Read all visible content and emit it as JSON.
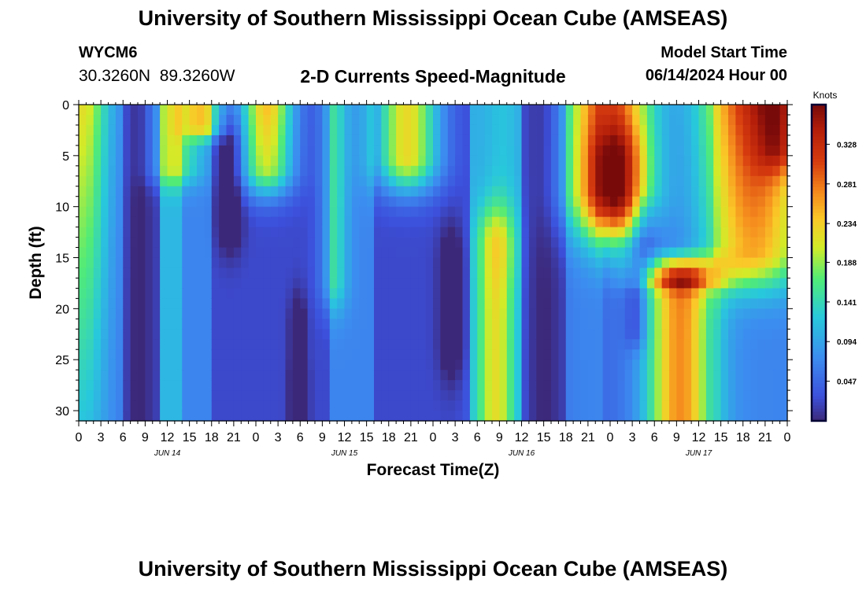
{
  "header": {
    "title": "University of Southern Mississippi Ocean Cube (AMSEAS)",
    "station_id": "WYCM6",
    "coordinates": "30.3260N  89.3260W",
    "plot_title": "2-D Currents Speed-Magnitude",
    "model_start_label": "Model Start Time",
    "model_start_value": "06/14/2024 Hour 00"
  },
  "footer": {
    "title": "University of Southern Mississippi Ocean Cube (AMSEAS)"
  },
  "colors": {
    "background": "#ffffff",
    "text": "#000000",
    "colorbar_frame": "#000033"
  },
  "chart_data": {
    "type": "heatmap",
    "title": "2-D Currents Speed-Magnitude",
    "xlabel": "Forecast Time(Z)",
    "ylabel": "Depth (ft)",
    "x_range_hours": [
      0,
      96
    ],
    "y_range_ft": [
      0,
      31
    ],
    "y_reversed": true,
    "x_ticks": [
      {
        "hour": 0,
        "label": "0"
      },
      {
        "hour": 3,
        "label": "3"
      },
      {
        "hour": 6,
        "label": "6"
      },
      {
        "hour": 9,
        "label": "9"
      },
      {
        "hour": 12,
        "label": "12"
      },
      {
        "hour": 15,
        "label": "15"
      },
      {
        "hour": 18,
        "label": "18"
      },
      {
        "hour": 21,
        "label": "21"
      },
      {
        "hour": 24,
        "label": "0"
      },
      {
        "hour": 27,
        "label": "3"
      },
      {
        "hour": 30,
        "label": "6"
      },
      {
        "hour": 33,
        "label": "9"
      },
      {
        "hour": 36,
        "label": "12"
      },
      {
        "hour": 39,
        "label": "15"
      },
      {
        "hour": 42,
        "label": "18"
      },
      {
        "hour": 45,
        "label": "21"
      },
      {
        "hour": 48,
        "label": "0"
      },
      {
        "hour": 51,
        "label": "3"
      },
      {
        "hour": 54,
        "label": "6"
      },
      {
        "hour": 57,
        "label": "9"
      },
      {
        "hour": 60,
        "label": "12"
      },
      {
        "hour": 63,
        "label": "15"
      },
      {
        "hour": 66,
        "label": "18"
      },
      {
        "hour": 69,
        "label": "21"
      },
      {
        "hour": 72,
        "label": "0"
      },
      {
        "hour": 75,
        "label": "3"
      },
      {
        "hour": 78,
        "label": "6"
      },
      {
        "hour": 81,
        "label": "9"
      },
      {
        "hour": 84,
        "label": "12"
      },
      {
        "hour": 87,
        "label": "15"
      },
      {
        "hour": 90,
        "label": "18"
      },
      {
        "hour": 93,
        "label": "21"
      },
      {
        "hour": 96,
        "label": "0"
      }
    ],
    "y_ticks": [
      {
        "depth": 0,
        "label": "0"
      },
      {
        "depth": 5,
        "label": "5"
      },
      {
        "depth": 10,
        "label": "10"
      },
      {
        "depth": 15,
        "label": "15"
      },
      {
        "depth": 20,
        "label": "20"
      },
      {
        "depth": 25,
        "label": "25"
      },
      {
        "depth": 30,
        "label": "30"
      }
    ],
    "date_labels": [
      {
        "hour": 12,
        "label": "JUN 14"
      },
      {
        "hour": 36,
        "label": "JUN 15"
      },
      {
        "hour": 60,
        "label": "JUN 16"
      },
      {
        "hour": 84,
        "label": "JUN 17"
      }
    ],
    "colorbar": {
      "label": "Knots",
      "min": 0.0,
      "max": 0.375,
      "ticks": [
        {
          "value": 0.047,
          "label": "0.047"
        },
        {
          "value": 0.094,
          "label": "0.094"
        },
        {
          "value": 0.141,
          "label": "0.141"
        },
        {
          "value": 0.188,
          "label": "0.188"
        },
        {
          "value": 0.234,
          "label": "0.234"
        },
        {
          "value": 0.281,
          "label": "0.281"
        },
        {
          "value": 0.328,
          "label": "0.328"
        }
      ]
    },
    "grid_step_hours": 1,
    "grid_step_ft": 1,
    "speed_anomalies": [
      {
        "t": 0.5,
        "ts": 2.5,
        "d0": 0,
        "d1": 31,
        "dw": 1.2,
        "depthSlope": -0.02,
        "amp": 0.16
      },
      {
        "t": 8.2,
        "ts": 1.1,
        "d0": 0,
        "d1": 31,
        "dw": 1.2,
        "depthSlope": 0,
        "amp": -0.025
      },
      {
        "t": 13,
        "ts": 2.5,
        "d0": 0,
        "d1": 6,
        "dw": 1.5,
        "depthSlope": 0,
        "amp": 0.1
      },
      {
        "t": 17,
        "ts": 2,
        "d0": 0,
        "d1": 2,
        "dw": 1.0,
        "depthSlope": 0,
        "amp": 0.14
      },
      {
        "t": 20.5,
        "ts": 1.2,
        "d0": 4,
        "d1": 11,
        "dw": 2.5,
        "depthSlope": 0,
        "amp": -0.06
      },
      {
        "t": 25.5,
        "ts": 2.5,
        "d0": 0,
        "d1": 6,
        "dw": 2.2,
        "depthSlope": -0.03,
        "amp": 0.22
      },
      {
        "t": 30,
        "ts": 0.5,
        "d0": 26.5,
        "d1": 31,
        "dw": 0.8,
        "depthSlope": 0,
        "amp": -0.35
      },
      {
        "t": 29.7,
        "ts": 0.8,
        "d0": 22,
        "d1": 31,
        "dw": 2.5,
        "depthSlope": 0,
        "amp": -0.05
      },
      {
        "t": 34.5,
        "ts": 1.3,
        "d0": 0,
        "d1": 17,
        "dw": 2.5,
        "depthSlope": 0,
        "amp": 0.08
      },
      {
        "t": 44.5,
        "ts": 3.0,
        "d0": 0,
        "d1": 5,
        "dw": 2.5,
        "depthSlope": 0,
        "amp": 0.2
      },
      {
        "t": 50.5,
        "ts": 1.2,
        "d0": 16,
        "d1": 23,
        "dw": 3.0,
        "depthSlope": 0,
        "amp": -0.05
      },
      {
        "t": 56.5,
        "ts": 1.8,
        "d0": 14,
        "d1": 31,
        "dw": 3.0,
        "depthSlope": 0,
        "amp": 0.12
      },
      {
        "t": 57.5,
        "ts": 1.6,
        "d0": 0,
        "d1": 14,
        "dw": 3.0,
        "depthSlope": 0,
        "amp": 0.02
      },
      {
        "t": 63,
        "ts": 2.0,
        "d0": 0,
        "d1": 31,
        "dw": 2.0,
        "depthSlope": 0,
        "amp": -0.03
      },
      {
        "t": 72,
        "ts": 4.0,
        "d0": 0,
        "d1": 8,
        "dw": 3.5,
        "depthSlope": 0,
        "amp": 0.25
      },
      {
        "t": 73,
        "ts": 2.5,
        "d0": 6,
        "d1": 10,
        "dw": 3.0,
        "depthSlope": 0,
        "amp": 0.1
      },
      {
        "t": 76.5,
        "ts": 1.3,
        "d0": 11,
        "d1": 15,
        "dw": 1.5,
        "depthSlope": 0,
        "amp": -0.05
      },
      {
        "t": 75.5,
        "ts": 1.0,
        "d0": 18,
        "d1": 22,
        "dw": 1.5,
        "depthSlope": 0,
        "amp": -0.05
      },
      {
        "t": 81.5,
        "ts": 3.2,
        "d0": 17.5,
        "d1": 31,
        "dw": 1.2,
        "depthSlope": 0,
        "amp": 0.22
      },
      {
        "t": 81.5,
        "ts": 4.5,
        "d0": 15.5,
        "d1": 17,
        "dw": 0.8,
        "depthSlope": 0,
        "amp": 0.1
      },
      {
        "t": 91.5,
        "ts": 5.0,
        "d0": 0,
        "d1": 14,
        "dw": 3.0,
        "depthSlope": -0.02,
        "amp": 0.26
      },
      {
        "t": 95,
        "ts": 2.0,
        "d0": 0,
        "d1": 4,
        "dw": 2.0,
        "depthSlope": 0,
        "amp": 0.1
      }
    ],
    "speed_baseline": {
      "segments": [
        {
          "from": 0,
          "to": 6,
          "value": 0.06
        },
        {
          "from": 6,
          "to": 11,
          "value": 0.02
        },
        {
          "from": 11,
          "to": 14,
          "value": 0.11
        },
        {
          "from": 14,
          "to": 18,
          "value": 0.07
        },
        {
          "from": 18,
          "to": 34,
          "value": 0.025
        },
        {
          "from": 34,
          "to": 40,
          "value": 0.07
        },
        {
          "from": 40,
          "to": 53,
          "value": 0.025
        },
        {
          "from": 53,
          "to": 60,
          "value": 0.1
        },
        {
          "from": 60,
          "to": 66,
          "value": 0.03
        },
        {
          "from": 66,
          "to": 71,
          "value": 0.07
        },
        {
          "from": 71,
          "to": 86,
          "value": 0.05
        },
        {
          "from": 86,
          "to": 96,
          "value": 0.07
        }
      ]
    }
  }
}
